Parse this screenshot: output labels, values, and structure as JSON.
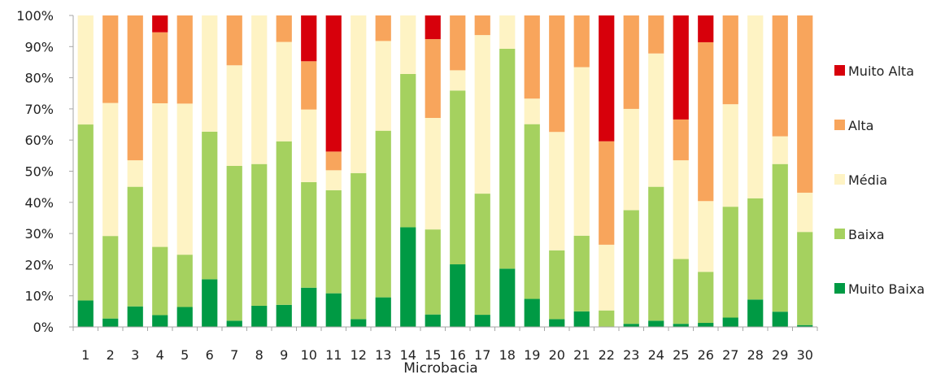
{
  "chart_data": {
    "type": "bar",
    "stacked": true,
    "percent": true,
    "categories": [
      "1",
      "2",
      "3",
      "4",
      "5",
      "6",
      "7",
      "8",
      "9",
      "10",
      "11",
      "12",
      "13",
      "14",
      "15",
      "16",
      "17",
      "18",
      "19",
      "20",
      "21",
      "22",
      "23",
      "24",
      "25",
      "26",
      "27",
      "28",
      "29",
      "30"
    ],
    "xlabel": "Microbacia",
    "ylabel": "",
    "ylim": [
      0,
      100
    ],
    "yticks": [
      "0%",
      "10%",
      "20%",
      "30%",
      "40%",
      "50%",
      "60%",
      "70%",
      "80%",
      "90%",
      "100%"
    ],
    "grid": false,
    "legend_position": "right",
    "series": [
      {
        "name": "Muito Baixa",
        "color": "#009A44",
        "values": [
          8.5,
          2.7,
          6.6,
          3.8,
          6.4,
          15.3,
          2.0,
          6.8,
          7.1,
          12.6,
          10.8,
          2.5,
          9.5,
          32.0,
          4.0,
          20.1,
          3.9,
          18.7,
          9.0,
          2.5,
          5.0,
          0,
          1.0,
          2.0,
          1.0,
          1.3,
          3.0,
          8.8,
          4.9,
          0.6
        ]
      },
      {
        "name": "Baixa",
        "color": "#A5D15F",
        "values": [
          56.5,
          26.5,
          38.4,
          21.9,
          16.8,
          47.4,
          49.7,
          45.5,
          52.5,
          33.9,
          33.1,
          46.9,
          53.5,
          49.2,
          27.3,
          55.8,
          38.9,
          70.6,
          56.1,
          22.1,
          24.3,
          5.3,
          36.5,
          43.0,
          20.8,
          16.4,
          35.6,
          32.5,
          47.4,
          29.9
        ]
      },
      {
        "name": "Média",
        "color": "#FEF3C4",
        "values": [
          35.0,
          42.7,
          8.5,
          46.1,
          48.5,
          37.3,
          32.3,
          47.7,
          31.9,
          23.3,
          6.4,
          50.6,
          28.8,
          18.8,
          35.8,
          6.5,
          50.9,
          10.7,
          8.2,
          38.0,
          54.1,
          21.1,
          32.5,
          42.8,
          31.7,
          22.7,
          32.9,
          58.7,
          8.9,
          12.6
        ]
      },
      {
        "name": "Alta",
        "color": "#F8A55C",
        "values": [
          0,
          28.1,
          46.5,
          22.8,
          28.3,
          0,
          16.0,
          0,
          8.5,
          15.5,
          6.0,
          0,
          8.2,
          0,
          25.3,
          17.6,
          6.3,
          0,
          26.7,
          37.4,
          16.6,
          33.2,
          30.0,
          12.2,
          13.1,
          51.0,
          28.5,
          0,
          38.8,
          56.9
        ]
      },
      {
        "name": "Muito Alta",
        "color": "#D7000B",
        "values": [
          0,
          0,
          0,
          5.4,
          0,
          0,
          0,
          0,
          0,
          14.7,
          43.7,
          0,
          0,
          0,
          7.6,
          0,
          0,
          0,
          0,
          0,
          0,
          40.4,
          0,
          0,
          33.4,
          8.6,
          0,
          0,
          0,
          0
        ]
      }
    ]
  }
}
